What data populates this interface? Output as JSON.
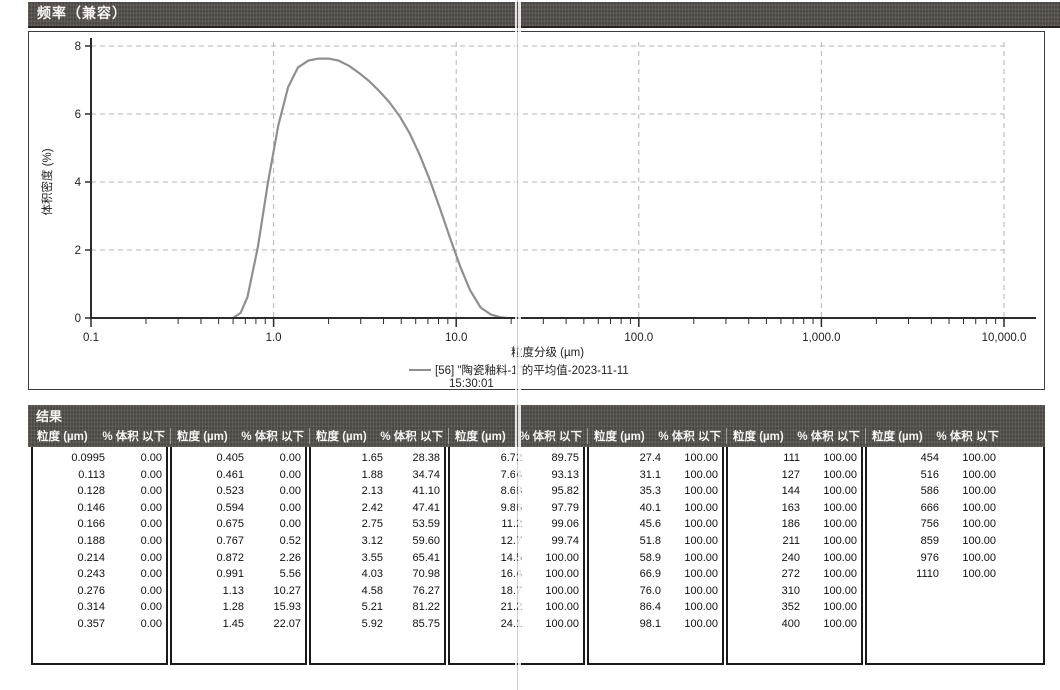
{
  "chart_panel": {
    "title": "频率（兼容）"
  },
  "chart_data": {
    "type": "line",
    "title": "频率（兼容）",
    "xlabel": "粒度分级 (µm)",
    "ylabel": "体积密度 (%)",
    "xscale": "log",
    "xlim": [
      0.1,
      10000
    ],
    "ylim": [
      0,
      8
    ],
    "grid": true,
    "legend_position": "bottom",
    "yticks": [
      0,
      2,
      4,
      6,
      8
    ],
    "xticks": [
      {
        "v": 0.1,
        "label": "0.1"
      },
      {
        "v": 1,
        "label": "1.0"
      },
      {
        "v": 10,
        "label": "10.0"
      },
      {
        "v": 100,
        "label": "100.0"
      },
      {
        "v": 1000,
        "label": "1,000.0"
      },
      {
        "v": 10000,
        "label": "10,000.0"
      }
    ],
    "legend_lines": [
      "[56] \"陶瓷釉料-1\"的平均值-2023-11-11",
      "15:30:01"
    ],
    "series": [
      {
        "name": "[56] \"陶瓷釉料-1\"的平均值-2023-11-11 15:30:01",
        "color": "#8f8f8f",
        "points": [
          [
            0.6,
            0
          ],
          [
            0.66,
            0.15
          ],
          [
            0.72,
            0.62
          ],
          [
            0.82,
            2.09
          ],
          [
            0.93,
            3.96
          ],
          [
            1.06,
            5.65
          ],
          [
            1.2,
            6.79
          ],
          [
            1.36,
            7.37
          ],
          [
            1.55,
            7.57
          ],
          [
            1.76,
            7.63
          ],
          [
            2.0,
            7.63
          ],
          [
            2.27,
            7.57
          ],
          [
            2.58,
            7.42
          ],
          [
            2.93,
            7.21
          ],
          [
            3.33,
            6.97
          ],
          [
            3.78,
            6.68
          ],
          [
            4.3,
            6.35
          ],
          [
            4.89,
            5.94
          ],
          [
            5.55,
            5.44
          ],
          [
            6.31,
            4.8
          ],
          [
            7.17,
            4.06
          ],
          [
            8.14,
            3.23
          ],
          [
            9.25,
            2.36
          ],
          [
            10.5,
            1.52
          ],
          [
            11.9,
            0.82
          ],
          [
            13.6,
            0.31
          ],
          [
            15.5,
            0.1
          ],
          [
            17.5,
            0.02
          ],
          [
            19.0,
            0
          ]
        ]
      }
    ]
  },
  "results": {
    "title": "结果",
    "col_size_label": "粒度 (µm)",
    "col_pct_label": "% 体积 以下",
    "tables": [
      [
        [
          "0.0995",
          "0.00"
        ],
        [
          "0.113",
          "0.00"
        ],
        [
          "0.128",
          "0.00"
        ],
        [
          "0.146",
          "0.00"
        ],
        [
          "0.166",
          "0.00"
        ],
        [
          "0.188",
          "0.00"
        ],
        [
          "0.214",
          "0.00"
        ],
        [
          "0.243",
          "0.00"
        ],
        [
          "0.276",
          "0.00"
        ],
        [
          "0.314",
          "0.00"
        ],
        [
          "0.357",
          "0.00"
        ]
      ],
      [
        [
          "0.405",
          "0.00"
        ],
        [
          "0.461",
          "0.00"
        ],
        [
          "0.523",
          "0.00"
        ],
        [
          "0.594",
          "0.00"
        ],
        [
          "0.675",
          "0.00"
        ],
        [
          "0.767",
          "0.52"
        ],
        [
          "0.872",
          "2.26"
        ],
        [
          "0.991",
          "5.56"
        ],
        [
          "1.13",
          "10.27"
        ],
        [
          "1.28",
          "15.93"
        ],
        [
          "1.45",
          "22.07"
        ]
      ],
      [
        [
          "1.65",
          "28.38"
        ],
        [
          "1.88",
          "34.74"
        ],
        [
          "2.13",
          "41.10"
        ],
        [
          "2.42",
          "47.41"
        ],
        [
          "2.75",
          "53.59"
        ],
        [
          "3.12",
          "59.60"
        ],
        [
          "3.55",
          "65.41"
        ],
        [
          "4.03",
          "70.98"
        ],
        [
          "4.58",
          "76.27"
        ],
        [
          "5.21",
          "81.22"
        ],
        [
          "5.92",
          "85.75"
        ]
      ],
      [
        [
          "6.72",
          "89.75"
        ],
        [
          "7.64",
          "93.13"
        ],
        [
          "8.68",
          "95.82"
        ],
        [
          "9.86",
          "97.79"
        ],
        [
          "11.2",
          "99.06"
        ],
        [
          "12.7",
          "99.74"
        ],
        [
          "14.5",
          "100.00"
        ],
        [
          "16.4",
          "100.00"
        ],
        [
          "18.7",
          "100.00"
        ],
        [
          "21.2",
          "100.00"
        ],
        [
          "24.1",
          "100.00"
        ]
      ],
      [
        [
          "27.4",
          "100.00"
        ],
        [
          "31.1",
          "100.00"
        ],
        [
          "35.3",
          "100.00"
        ],
        [
          "40.1",
          "100.00"
        ],
        [
          "45.6",
          "100.00"
        ],
        [
          "51.8",
          "100.00"
        ],
        [
          "58.9",
          "100.00"
        ],
        [
          "66.9",
          "100.00"
        ],
        [
          "76.0",
          "100.00"
        ],
        [
          "86.4",
          "100.00"
        ],
        [
          "98.1",
          "100.00"
        ]
      ],
      [
        [
          "111",
          "100.00"
        ],
        [
          "127",
          "100.00"
        ],
        [
          "144",
          "100.00"
        ],
        [
          "163",
          "100.00"
        ],
        [
          "186",
          "100.00"
        ],
        [
          "211",
          "100.00"
        ],
        [
          "240",
          "100.00"
        ],
        [
          "272",
          "100.00"
        ],
        [
          "310",
          "100.00"
        ],
        [
          "352",
          "100.00"
        ],
        [
          "400",
          "100.00"
        ]
      ],
      [
        [
          "454",
          "100.00"
        ],
        [
          "516",
          "100.00"
        ],
        [
          "586",
          "100.00"
        ],
        [
          "666",
          "100.00"
        ],
        [
          "756",
          "100.00"
        ],
        [
          "859",
          "100.00"
        ],
        [
          "976",
          "100.00"
        ],
        [
          "1110",
          "100.00"
        ]
      ]
    ]
  },
  "colors": {
    "bar_bg": "#57524d",
    "bar_text": "#f6f5f2",
    "grid": "#b5b5b5",
    "axis": "#2b2b2b",
    "curve": "#8f8f8f",
    "table_border": "#1a1a1a",
    "text": "#1f1f1f"
  }
}
